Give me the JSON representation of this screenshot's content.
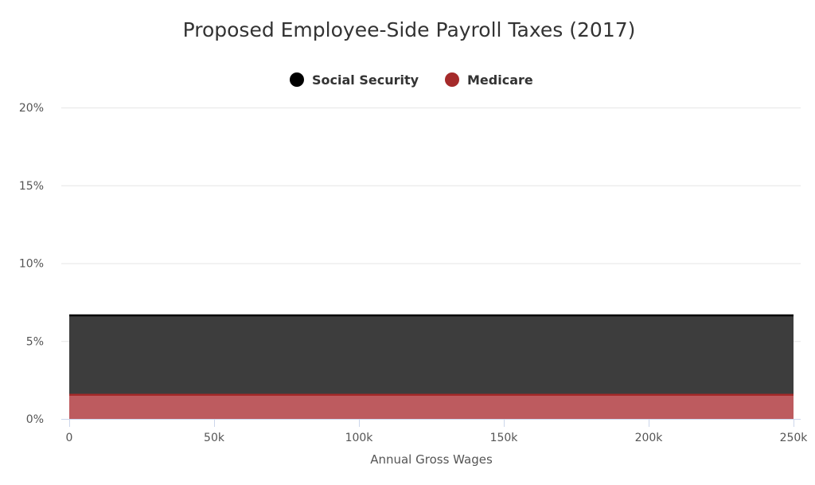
{
  "chart_data": {
    "type": "area",
    "title": "Proposed Employee-Side Payroll Taxes (2017)",
    "xlabel": "Annual Gross Wages",
    "ylabel": "",
    "stacked": true,
    "x": [
      0,
      250000
    ],
    "xlim": [
      0,
      250000
    ],
    "ylim": [
      0,
      20
    ],
    "x_ticks": [
      0,
      50000,
      100000,
      150000,
      200000,
      250000
    ],
    "x_tick_labels": [
      "0",
      "50k",
      "100k",
      "150k",
      "200k",
      "250k"
    ],
    "y_ticks": [
      0,
      5,
      10,
      15,
      20
    ],
    "y_tick_labels": [
      "0%",
      "5%",
      "10%",
      "15%",
      "20%"
    ],
    "grid": true,
    "legend_position": "top-center",
    "series": [
      {
        "name": "Social Security",
        "values": [
          5.1,
          5.1
        ],
        "color": "#000000",
        "fill_color": "#3d3d3d"
      },
      {
        "name": "Medicare",
        "values": [
          1.55,
          1.55
        ],
        "color": "#a52a2a",
        "fill_color": "#bd5b5f"
      }
    ],
    "legend_order": [
      "Social Security",
      "Medicare"
    ]
  }
}
